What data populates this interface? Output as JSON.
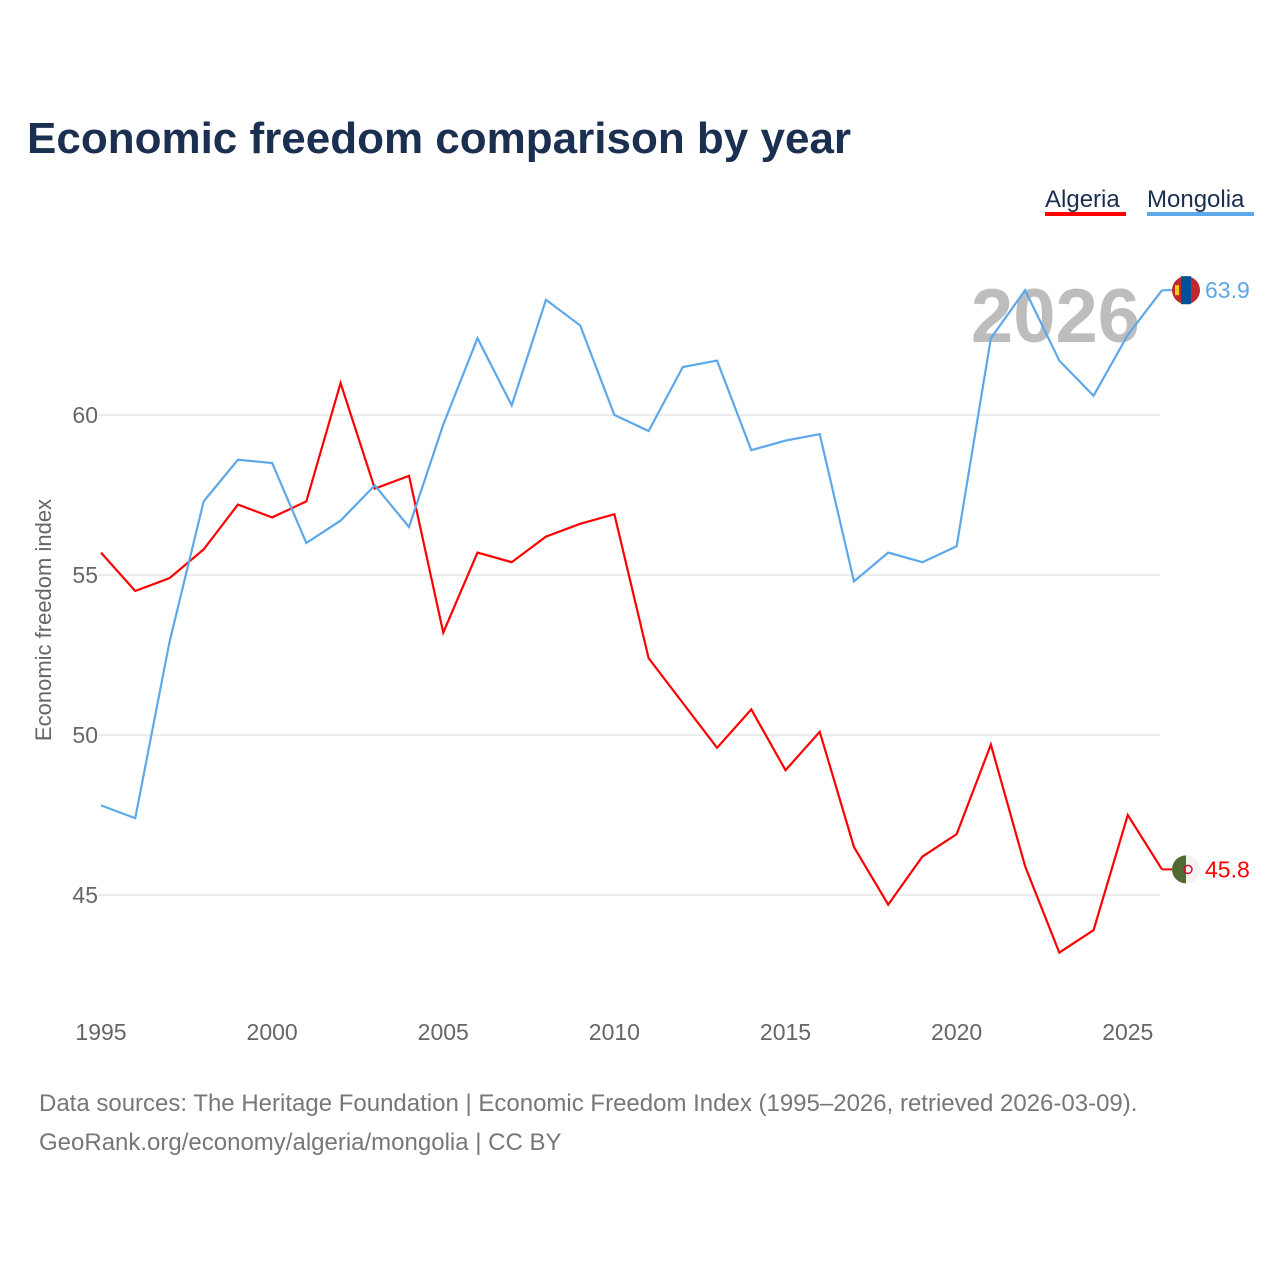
{
  "chart_data": {
    "type": "line",
    "title": "Economic freedom comparison by year",
    "xlabel": "",
    "ylabel": "Economic freedom index",
    "xlim": [
      1995,
      2026
    ],
    "ylim": [
      41.4,
      65
    ],
    "x_ticks": [
      1995,
      2000,
      2005,
      2010,
      2015,
      2020,
      2025
    ],
    "y_ticks": [
      45,
      50,
      55,
      60
    ],
    "grid": true,
    "legend_position": "top-right",
    "watermark_year": "2026",
    "x": [
      1995,
      1996,
      1997,
      1998,
      1999,
      2000,
      2001,
      2002,
      2003,
      2004,
      2005,
      2006,
      2007,
      2008,
      2009,
      2010,
      2011,
      2012,
      2013,
      2014,
      2015,
      2016,
      2017,
      2018,
      2019,
      2020,
      2021,
      2022,
      2023,
      2024,
      2025,
      2026
    ],
    "series": [
      {
        "name": "Algeria",
        "color": "#ff0000",
        "end_label": "45.8",
        "values": [
          55.7,
          54.5,
          54.9,
          55.8,
          57.2,
          56.8,
          57.3,
          61.0,
          57.7,
          58.1,
          53.2,
          55.7,
          55.4,
          56.2,
          56.6,
          56.9,
          52.4,
          51.0,
          49.6,
          50.8,
          48.9,
          50.1,
          46.5,
          44.7,
          46.2,
          46.9,
          49.7,
          45.9,
          43.2,
          43.9,
          47.5,
          45.8
        ]
      },
      {
        "name": "Mongolia",
        "color": "#5ca8ea",
        "end_label": "63.9",
        "values": [
          47.8,
          47.4,
          52.9,
          57.3,
          58.6,
          58.5,
          56.0,
          56.7,
          57.8,
          56.5,
          59.7,
          62.4,
          60.3,
          63.6,
          62.8,
          60.0,
          59.5,
          61.5,
          61.7,
          58.9,
          59.2,
          59.4,
          54.8,
          55.7,
          55.4,
          55.9,
          62.4,
          63.9,
          61.7,
          60.6,
          62.5,
          63.9
        ]
      }
    ]
  },
  "footer": {
    "line1": "Data sources: The Heritage Foundation | Economic Freedom Index (1995–2026, retrieved 2026-03-09).",
    "line2": "GeoRank.org/economy/algeria/mongolia | CC BY"
  }
}
